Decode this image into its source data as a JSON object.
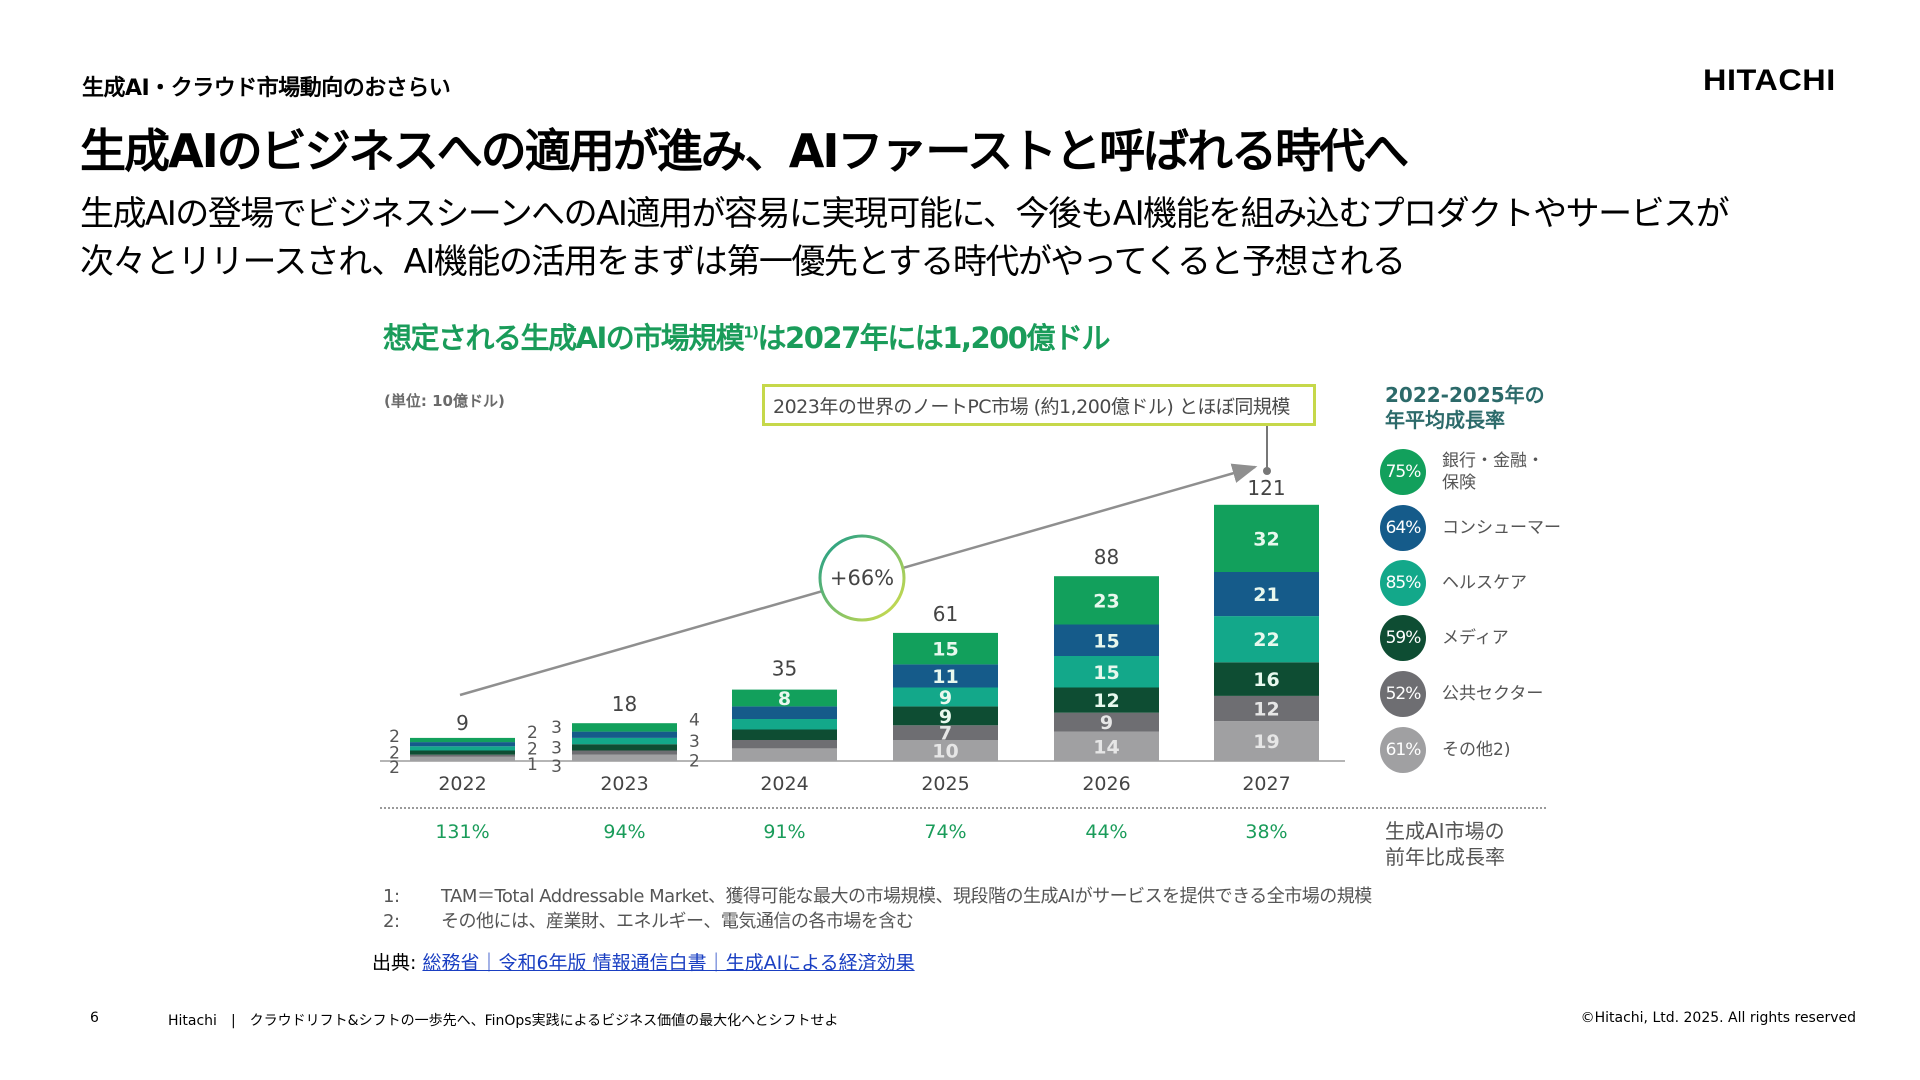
{
  "header": {
    "section_label": "生成AI・クラウド市場動向のおさらい",
    "logo": "HITACHI",
    "title": "生成AIのビジネスへの適用が進み、AIファーストと呼ばれる時代へ",
    "lead_lines": [
      "生成AIの登場でビジネスシーンへのAI適用が容易に実現可能に、今後もAI機能を組み込むプロダクトやサービスが",
      "次々とリリースされ、AI機能の活用をまずは第一優先とする時代がやってくると予想される"
    ]
  },
  "chart_data": {
    "type": "bar",
    "stacked": true,
    "title": "想定される生成AIの市場規模",
    "title_sup": "1)",
    "title_suffix": "は2027年には1,200億ドル",
    "unit_label": "(単位: 10億ドル)",
    "categories": [
      "2022",
      "2023",
      "2024",
      "2025",
      "2026",
      "2027"
    ],
    "totals": [
      9,
      18,
      35,
      61,
      88,
      121
    ],
    "series": [
      {
        "name": "その他2)",
        "cagr": "61%",
        "color": "#a0a0a2",
        "values": [
          2,
          3,
          6,
          10,
          14,
          19
        ]
      },
      {
        "name": "公共セクター",
        "cagr": "52%",
        "color": "#6e6e72",
        "values": [
          1,
          2,
          4,
          7,
          9,
          12
        ]
      },
      {
        "name": "メディア",
        "cagr": "59%",
        "color": "#0e4d33",
        "values": [
          2,
          3,
          5,
          9,
          12,
          16
        ]
      },
      {
        "name": "ヘルスケア",
        "cagr": "85%",
        "color": "#13a88a",
        "values": [
          2,
          3,
          5,
          9,
          15,
          22
        ]
      },
      {
        "name": "コンシューマー",
        "cagr": "64%",
        "color": "#155b8a",
        "values": [
          2,
          3,
          6,
          11,
          15,
          21
        ]
      },
      {
        "name": "銀行・金融・保険",
        "cagr": "75%",
        "color": "#12a05c",
        "values": [
          2,
          4,
          8,
          15,
          23,
          32
        ]
      }
    ],
    "yoy_growth": [
      "131%",
      "94%",
      "91%",
      "74%",
      "44%",
      "38%"
    ],
    "yoy_label": "生成AI市場の\n前年比成長率",
    "cagr_annotation": "+66%",
    "callout": "2023年の世界のノートPC市場 (約1,200億ドル) とほぼ同規模",
    "legend_title": "2022-2025年の\n年平均成長率",
    "legend_placement": "right",
    "grid": false
  },
  "legend": [
    {
      "pct": "75%",
      "label": "銀行・金融・\n保険",
      "color": "#12a05c"
    },
    {
      "pct": "64%",
      "label": "コンシューマー",
      "color": "#155b8a"
    },
    {
      "pct": "85%",
      "label": "ヘルスケア",
      "color": "#13a88a"
    },
    {
      "pct": "59%",
      "label": "メディア",
      "color": "#0e4d33"
    },
    {
      "pct": "52%",
      "label": "公共セクター",
      "color": "#6e6e72"
    },
    {
      "pct": "61%",
      "label": "その他2)",
      "color": "#a0a0a2"
    }
  ],
  "footnotes": [
    {
      "num": "1:",
      "text": "TAM＝Total Addressable Market、獲得可能な最大の市場規模、現段階の生成AIがサービスを提供できる全市場の規模"
    },
    {
      "num": "2:",
      "text": "その他には、産業財、エネルギー、電気通信の各市場を含む"
    }
  ],
  "source": {
    "prefix": "出典: ",
    "link_text": "総務省｜令和6年版 情報通信白書｜生成AIによる経済効果"
  },
  "footer": {
    "page": "6",
    "text": "Hitachi　|　クラウドリフト&シフトの一歩先へ、FinOps実践によるビジネス価値の最大化へとシフトせよ",
    "copyright": "©Hitachi, Ltd. 2025. All rights reserved"
  }
}
